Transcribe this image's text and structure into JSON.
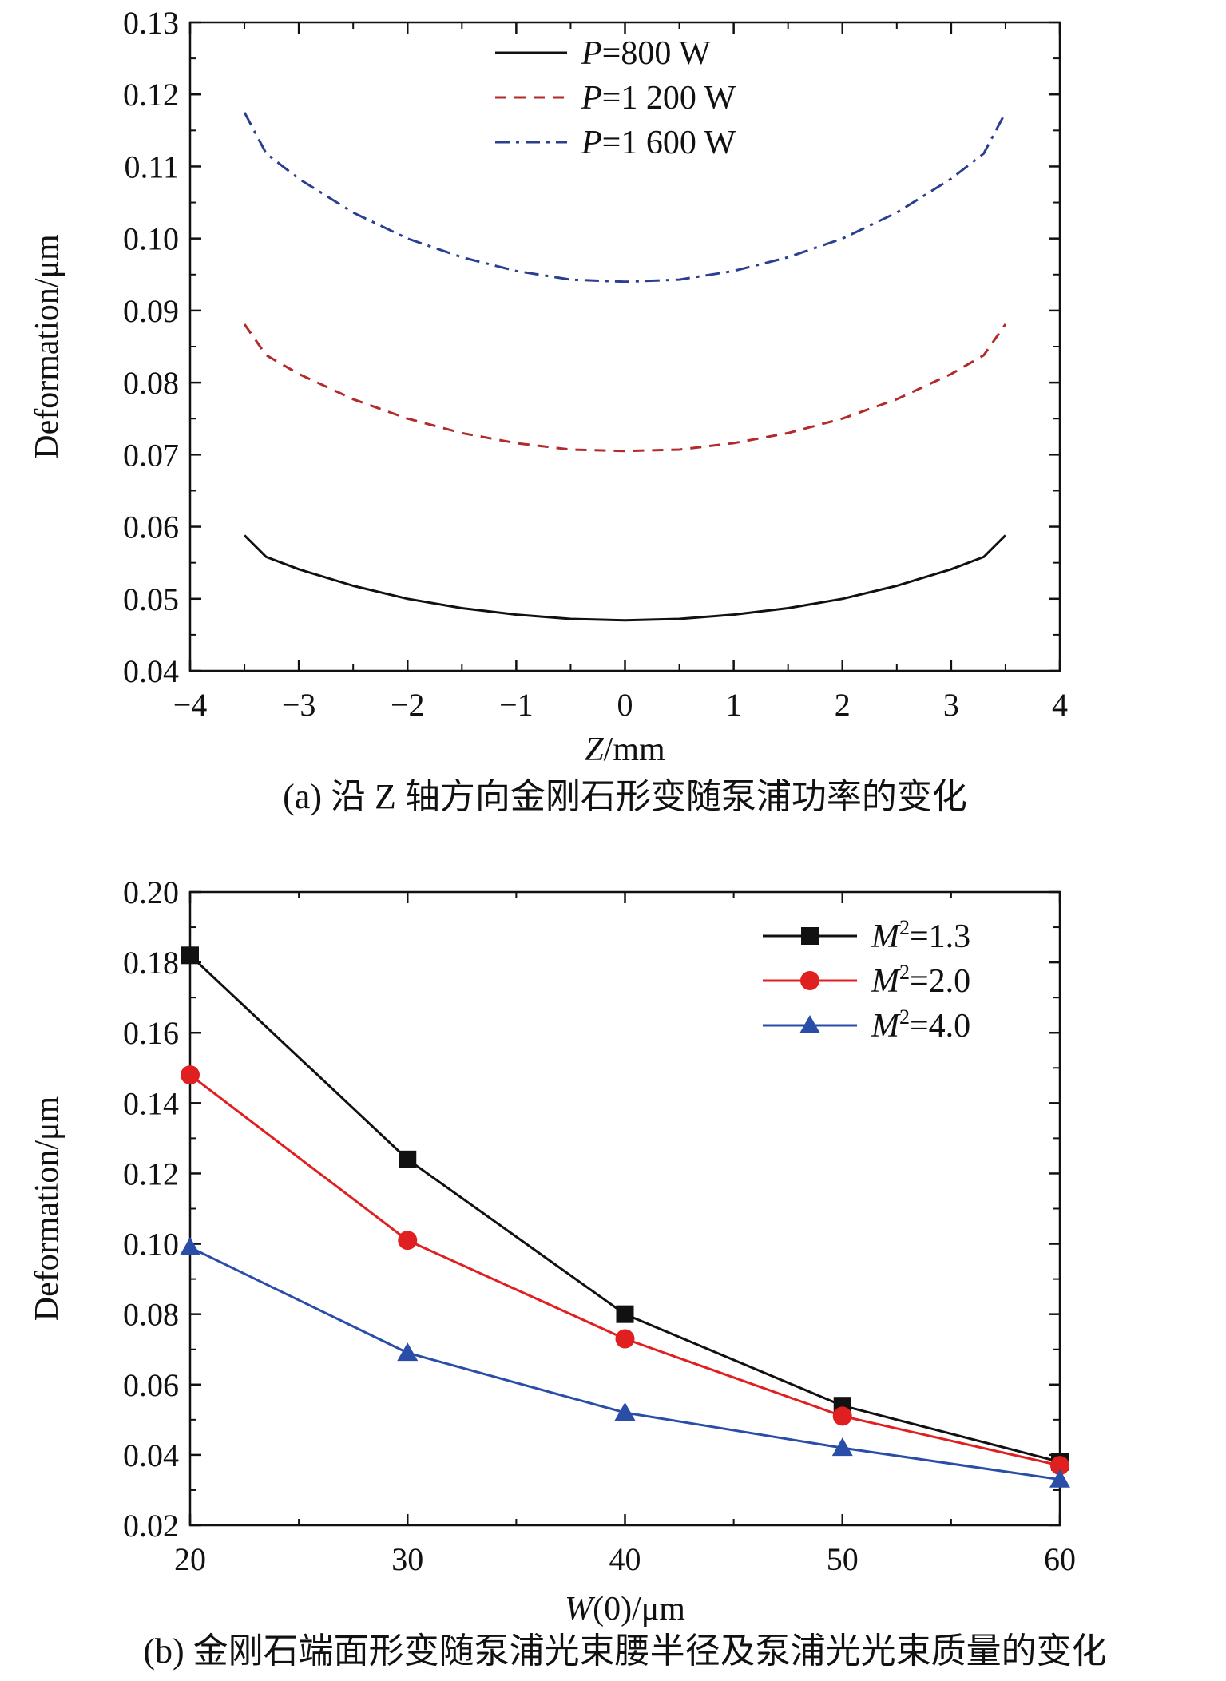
{
  "chart_data": [
    {
      "type": "line",
      "caption": "(a) 沿 Z 轴方向金刚石形变随泵浦功率的变化",
      "xlabel_var": "Z",
      "xlabel_unit": "/mm",
      "ylabel": "Deformation/μm",
      "xlim": [
        -4,
        4
      ],
      "ylim": [
        0.04,
        0.13
      ],
      "xticks": [
        "−4",
        "−3",
        "−2",
        "−1",
        "0",
        "1",
        "2",
        "3",
        "4"
      ],
      "yticks": [
        "0.04",
        "0.05",
        "0.06",
        "0.07",
        "0.08",
        "0.09",
        "0.10",
        "0.11",
        "0.12",
        "0.13"
      ],
      "grid": false,
      "legend_position": "top-center",
      "series": [
        {
          "name_var": "P",
          "name_rest": "=800 W",
          "color": "#111111",
          "dash": "solid",
          "x": [
            -3.5,
            -3.3,
            -3.0,
            -2.5,
            -2.0,
            -1.5,
            -1.0,
            -0.5,
            0.0,
            0.5,
            1.0,
            1.5,
            2.0,
            2.5,
            3.0,
            3.3,
            3.5
          ],
          "y": [
            0.0588,
            0.0558,
            0.0541,
            0.0518,
            0.05,
            0.0487,
            0.0478,
            0.0472,
            0.047,
            0.0472,
            0.0478,
            0.0487,
            0.05,
            0.0518,
            0.0541,
            0.0558,
            0.0588
          ]
        },
        {
          "name_var": "P",
          "name_rest": "=1 200 W",
          "color": "#b22a2a",
          "dash": "dashed",
          "x": [
            -3.5,
            -3.3,
            -3.0,
            -2.5,
            -2.0,
            -1.5,
            -1.0,
            -0.5,
            0.0,
            0.5,
            1.0,
            1.5,
            2.0,
            2.5,
            3.0,
            3.3,
            3.5
          ],
          "y": [
            0.0881,
            0.0838,
            0.0812,
            0.0777,
            0.075,
            0.073,
            0.0716,
            0.0707,
            0.0705,
            0.0707,
            0.0716,
            0.073,
            0.075,
            0.0777,
            0.0812,
            0.0838,
            0.0881
          ]
        },
        {
          "name_var": "P",
          "name_rest": "=1 600 W",
          "color": "#2a3f8f",
          "dash": "dashdot",
          "x": [
            -3.5,
            -3.3,
            -3.0,
            -2.5,
            -2.0,
            -1.5,
            -1.0,
            -0.5,
            0.0,
            0.5,
            1.0,
            1.5,
            2.0,
            2.5,
            3.0,
            3.3,
            3.5
          ],
          "y": [
            0.1175,
            0.1118,
            0.1083,
            0.1036,
            0.1,
            0.0974,
            0.0955,
            0.0943,
            0.094,
            0.0943,
            0.0955,
            0.0974,
            0.1,
            0.1036,
            0.1083,
            0.1118,
            0.1175
          ]
        }
      ]
    },
    {
      "type": "line",
      "caption": "(b) 金刚石端面形变随泵浦光束腰半径及泵浦光光束质量的变化",
      "xlabel_var": "W",
      "xlabel_unit": "(0)/μm",
      "ylabel": "Deformation/μm",
      "xlim": [
        20,
        60
      ],
      "ylim": [
        0.02,
        0.2
      ],
      "xticks": [
        "20",
        "30",
        "40",
        "50",
        "60"
      ],
      "yticks": [
        "0.02",
        "0.04",
        "0.06",
        "0.08",
        "0.10",
        "0.12",
        "0.14",
        "0.16",
        "0.18",
        "0.20"
      ],
      "grid": false,
      "legend_position": "top-right",
      "series": [
        {
          "name_var": "M",
          "name_sup": "2",
          "name_rest": "=1.3",
          "color": "#111111",
          "marker": "square",
          "x": [
            20,
            30,
            40,
            50,
            60
          ],
          "y": [
            0.182,
            0.124,
            0.08,
            0.054,
            0.038
          ]
        },
        {
          "name_var": "M",
          "name_sup": "2",
          "name_rest": "=2.0",
          "color": "#e02020",
          "marker": "circle",
          "x": [
            20,
            30,
            40,
            50,
            60
          ],
          "y": [
            0.148,
            0.101,
            0.073,
            0.051,
            0.037
          ]
        },
        {
          "name_var": "M",
          "name_sup": "2",
          "name_rest": "=4.0",
          "color": "#2a4ea8",
          "marker": "triangle",
          "x": [
            20,
            30,
            40,
            50,
            60
          ],
          "y": [
            0.099,
            0.069,
            0.052,
            0.042,
            0.033
          ]
        }
      ]
    }
  ]
}
